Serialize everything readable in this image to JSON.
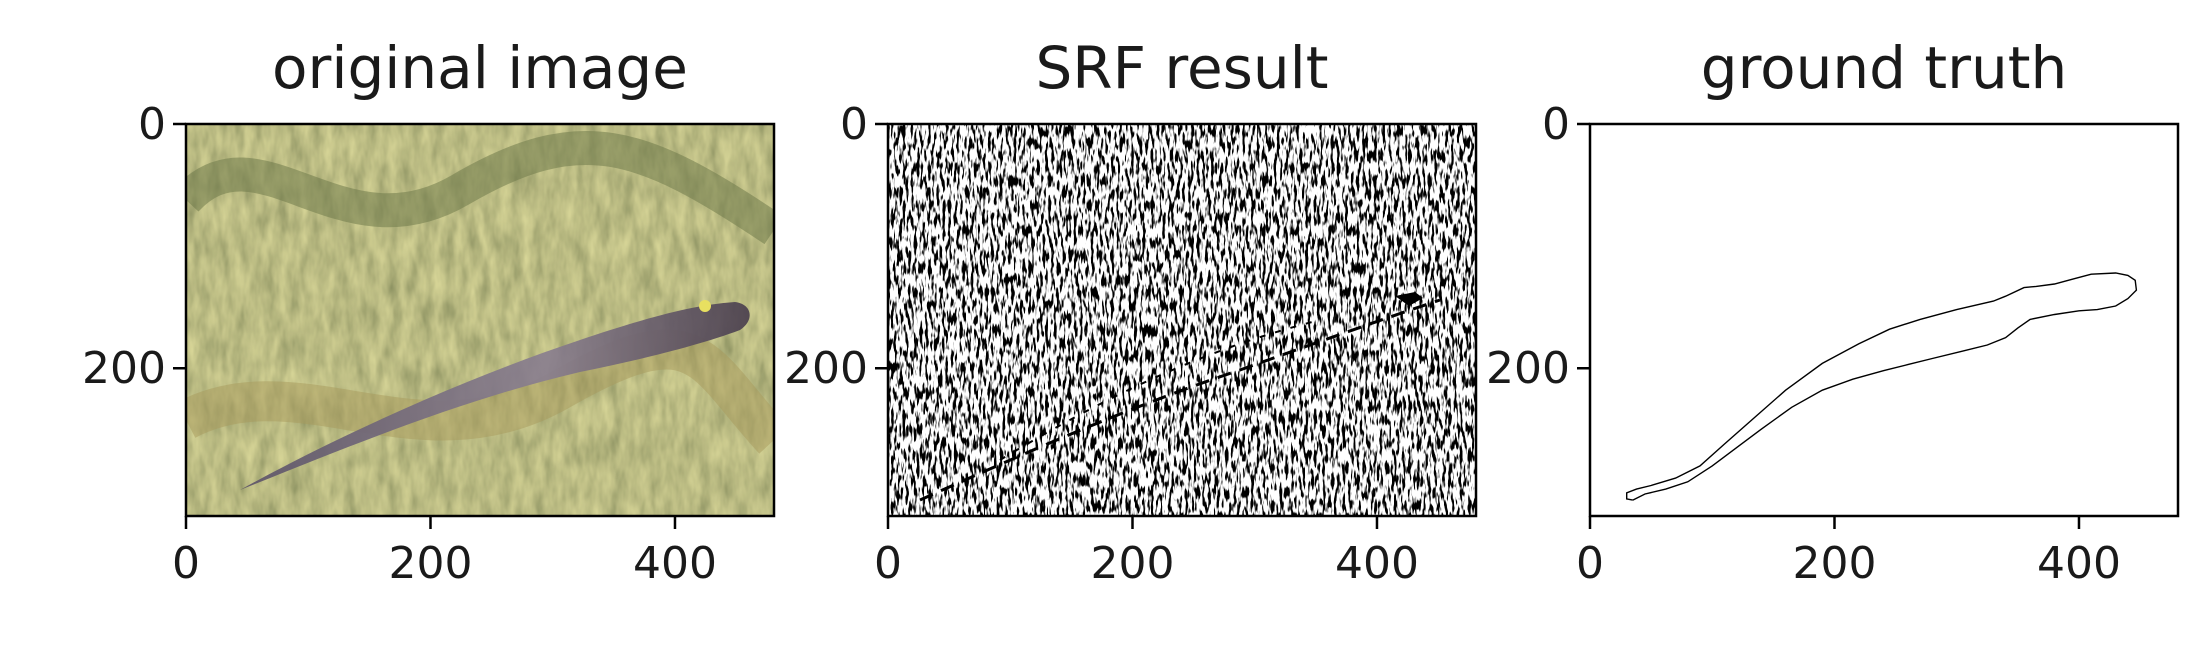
{
  "chart_data": [
    {
      "type": "image",
      "title": "original image",
      "xticks": [
        0,
        200,
        400
      ],
      "yticks": [
        0,
        200
      ],
      "xlim": [
        0,
        481
      ],
      "ylim": [
        321,
        0
      ],
      "content": "photograph of a fish lying on coral"
    },
    {
      "type": "image",
      "title": "SRF result",
      "xticks": [
        0,
        200,
        400
      ],
      "yticks": [
        0,
        200
      ],
      "xlim": [
        0,
        481
      ],
      "ylim": [
        321,
        0
      ],
      "content": "sparse black edge pixels on white background"
    },
    {
      "type": "image",
      "title": "ground truth",
      "xticks": [
        0,
        200,
        400
      ],
      "yticks": [
        0,
        200
      ],
      "xlim": [
        0,
        481
      ],
      "ylim": [
        321,
        0
      ],
      "content": "thin black contour outlining the fish on white background",
      "contour": [
        [
          35,
          308
        ],
        [
          45,
          303
        ],
        [
          62,
          299
        ],
        [
          80,
          293
        ],
        [
          100,
          280
        ],
        [
          120,
          265
        ],
        [
          140,
          250
        ],
        [
          165,
          232
        ],
        [
          190,
          218
        ],
        [
          215,
          209
        ],
        [
          240,
          202
        ],
        [
          260,
          197
        ],
        [
          280,
          192
        ],
        [
          305,
          186
        ],
        [
          325,
          181
        ],
        [
          340,
          175
        ],
        [
          350,
          167
        ],
        [
          360,
          160
        ],
        [
          380,
          156
        ],
        [
          400,
          153
        ],
        [
          415,
          152
        ],
        [
          430,
          149
        ],
        [
          440,
          143
        ],
        [
          447,
          136
        ],
        [
          446,
          128
        ],
        [
          440,
          124
        ],
        [
          430,
          122
        ],
        [
          410,
          123
        ],
        [
          395,
          127
        ],
        [
          380,
          131
        ],
        [
          365,
          133
        ],
        [
          355,
          134
        ],
        [
          340,
          141
        ],
        [
          330,
          145
        ],
        [
          300,
          152
        ],
        [
          270,
          160
        ],
        [
          245,
          168
        ],
        [
          220,
          180
        ],
        [
          190,
          196
        ],
        [
          160,
          218
        ],
        [
          135,
          240
        ],
        [
          110,
          262
        ],
        [
          90,
          280
        ],
        [
          70,
          290
        ],
        [
          50,
          296
        ],
        [
          38,
          299
        ],
        [
          30,
          302
        ],
        [
          30,
          307
        ],
        [
          35,
          308
        ]
      ]
    }
  ]
}
